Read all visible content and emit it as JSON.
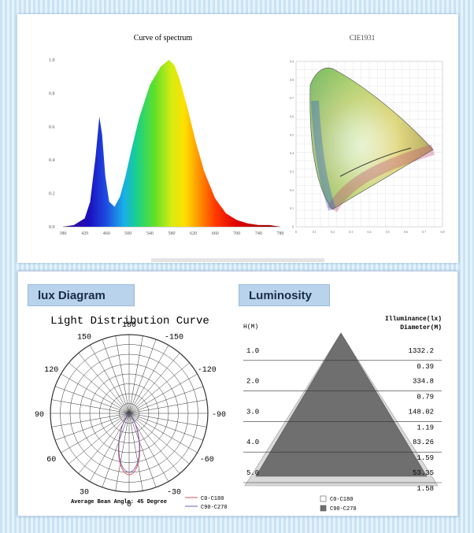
{
  "spectrum": {
    "title": "Curve of spectrum"
  },
  "cie": {
    "title": "CIE1931"
  },
  "lux": {
    "header": "lux Diagram",
    "title": "Light Distribution Curve",
    "footer": "Average Bean Angle: 45 Degree",
    "legend": [
      "C0-C180",
      "C90-C270"
    ],
    "legend_colors": [
      "#d9534f",
      "#6b5fb5"
    ]
  },
  "luminosity": {
    "header": "Luminosity",
    "col_left": "H(M)",
    "col_right_1": "Illuminance(lx)",
    "col_right_2": "Diameter(M)",
    "legend": [
      "C0-C180",
      "C90-C270"
    ]
  },
  "chart_data": [
    {
      "type": "line",
      "title": "Curve of spectrum",
      "x_ticks": [
        380,
        420,
        460,
        500,
        540,
        580,
        620,
        660,
        700,
        740,
        780
      ],
      "y_ticks": [
        "0.0",
        "0.2",
        "0.4",
        "0.6",
        "0.8",
        "1.0"
      ],
      "xlim": [
        380,
        780
      ],
      "ylim": [
        0,
        1.0
      ],
      "x": [
        380,
        400,
        420,
        430,
        440,
        447,
        452,
        458,
        465,
        475,
        485,
        495,
        505,
        520,
        540,
        560,
        575,
        585,
        595,
        610,
        625,
        640,
        660,
        680,
        700,
        720,
        740,
        760,
        780
      ],
      "y": [
        0.0,
        0.01,
        0.05,
        0.15,
        0.42,
        0.66,
        0.55,
        0.3,
        0.15,
        0.12,
        0.18,
        0.3,
        0.45,
        0.65,
        0.85,
        0.96,
        1.0,
        0.97,
        0.88,
        0.7,
        0.5,
        0.33,
        0.17,
        0.08,
        0.04,
        0.02,
        0.01,
        0.01,
        0.0
      ]
    },
    {
      "type": "scatter",
      "title": "CIE1931",
      "x_ticks": [
        "0",
        "0.1",
        "0.2",
        "0.3",
        "0.4",
        "0.5",
        "0.6",
        "0.7",
        "0.8"
      ],
      "y_ticks": [
        "0",
        "0.1",
        "0.2",
        "0.3",
        "0.4",
        "0.5",
        "0.6",
        "0.7",
        "0.8",
        "0.9"
      ],
      "xlim": [
        0,
        0.8
      ],
      "ylim": [
        0,
        0.9
      ]
    },
    {
      "type": "line",
      "title": "Light Distribution Curve",
      "angle_labels": [
        "180",
        "-150",
        "150",
        "-120",
        "120",
        "-90",
        "90",
        "-60",
        "60",
        "-30",
        "30",
        "0"
      ],
      "series": [
        {
          "name": "C0-C180",
          "beam_angle": 45
        },
        {
          "name": "C90-C270",
          "beam_angle": 45
        }
      ]
    },
    {
      "type": "table",
      "title": "Luminosity",
      "rows": [
        {
          "h": "1.0",
          "lux": "1332.2",
          "diameter": "0.39"
        },
        {
          "h": "2.0",
          "lux": "334.8",
          "diameter": "0.79"
        },
        {
          "h": "3.0",
          "lux": "148.02",
          "diameter": "1.19"
        },
        {
          "h": "4.0",
          "lux": "83.26",
          "diameter": "1.59"
        },
        {
          "h": "5.0",
          "lux": "53.35",
          "diameter": "1.58"
        }
      ]
    }
  ]
}
